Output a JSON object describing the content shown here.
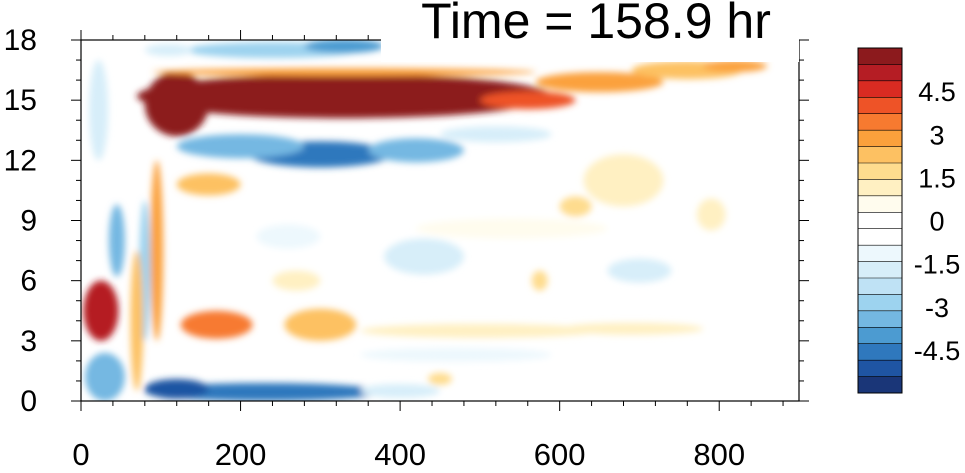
{
  "chart_data": {
    "type": "heatmap",
    "title": "Time = 158.9 hr",
    "xlabel": "",
    "ylabel": "",
    "xlim": [
      0,
      900
    ],
    "ylim": [
      0,
      18
    ],
    "x_ticks": [
      0,
      200,
      400,
      600,
      800
    ],
    "y_ticks": [
      0,
      3,
      6,
      9,
      12,
      15,
      18
    ],
    "x_tick_labels": [
      "0",
      "200",
      "400",
      "600",
      "800"
    ],
    "y_tick_labels": [
      "0",
      "3",
      "6",
      "9",
      "12",
      "15",
      "18"
    ],
    "colorbar": {
      "range": [
        -6,
        6
      ],
      "step": 0.5,
      "tick_labels": [
        "4.5",
        "3",
        "1.5",
        "0",
        "-1.5",
        "-3",
        "-4.5"
      ],
      "tick_values": [
        4.5,
        3,
        1.5,
        0,
        -1.5,
        -3,
        -4.5
      ],
      "colors_high_to_low": [
        "#8c1a1d",
        "#b51d24",
        "#d92b22",
        "#ee5327",
        "#f77a30",
        "#fba13c",
        "#fdc162",
        "#fedc8e",
        "#fff0c2",
        "#fffcee",
        "#ffffff",
        "#ffffff",
        "#edf8fd",
        "#d7eef9",
        "#bfe2f5",
        "#9dd3ef",
        "#74b8e2",
        "#4c9bd1",
        "#2f78bd",
        "#1f55a3",
        "#1a3678"
      ]
    },
    "features": [
      {
        "name": "warm jet band",
        "x": [
          75,
          600
        ],
        "y": [
          13.5,
          16.3
        ],
        "value": 6
      },
      {
        "name": "cold band below jet",
        "x": [
          110,
          460
        ],
        "y": [
          11.5,
          13.5
        ],
        "value": -5
      },
      {
        "name": "cold surface band",
        "x": [
          80,
          380
        ],
        "y": [
          0,
          1
        ],
        "value": -5
      },
      {
        "name": "warm low-level blob",
        "x": [
          0,
          50
        ],
        "y": [
          3,
          6
        ],
        "value": 5
      },
      {
        "name": "cold upper band",
        "x": [
          120,
          380
        ],
        "y": [
          17,
          18
        ],
        "value": -3
      }
    ]
  }
}
